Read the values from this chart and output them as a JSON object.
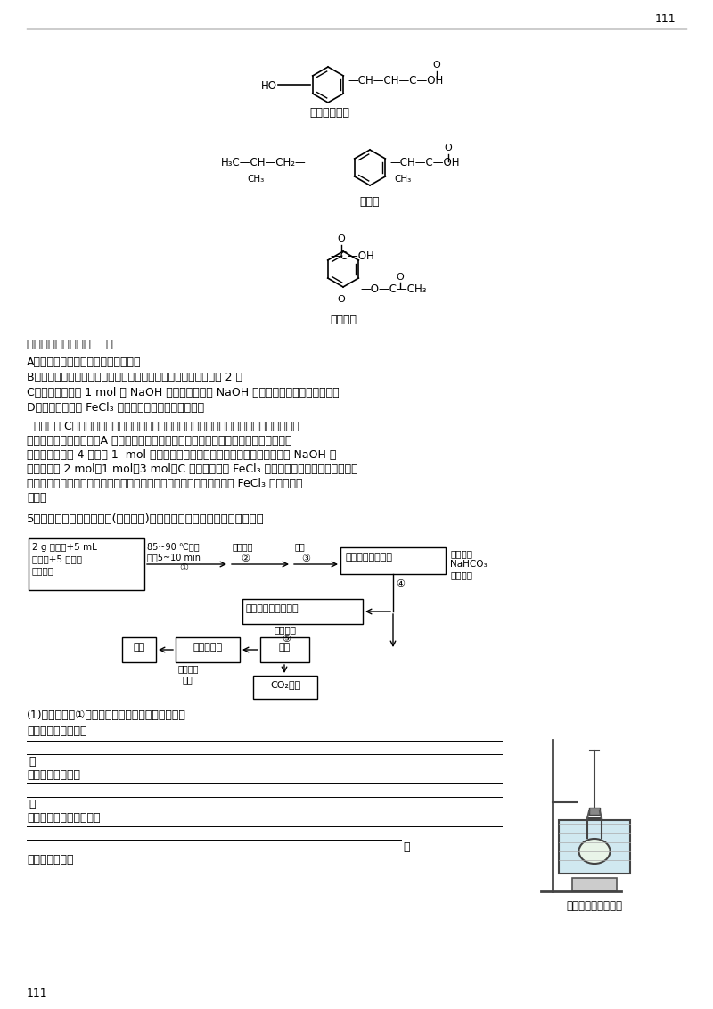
{
  "page_number": "111",
  "bg_color": "#ffffff",
  "text_color": "#000000",
  "molecule1_name": "对羟基桂皮酸",
  "molecule2_name": "布洛芬",
  "molecule3_name": "阿司匹林",
  "question_header": "以下说法正确的是（    ）",
  "options": [
    "A．三种有机物都能与浓溴水发生反应",
    "B．三种有机物苯环上的氢原子若被氯原子取代，其一氯化物只有 2 种",
    "C．三种有机物各 1 mol 与 NaOH 溶液反应，消耗 NaOH 的物质的量最多的是阿司匹林",
    "D．仅用稀硫酸和 FeCl₃ 溶液不能将三种有机物鉴别开"
  ],
  "analysis_lines": [
    "  解析：选 C。对羟基桂皮酸中有酚羟基，且有碳碳双键，能与浓溴水反应，布洛芬、阿司",
    "匹林不能与浓溴水反应，A 错。前两者苯环上的一氯代物都有两种，而后者无对称结构，",
    "故其一氯代物有 4 种。各 1  mol 的对羟基桂皮酸、布洛芬、阿司匹林分别消耗的 NaOH 的",
    "物质的量为 2 mol、1 mol、3 mol。C 项正确。先用 FeCl₃ 溶液可鉴别出对羟基桂皮酸，然",
    "后在余下的物质中分别加入稀硫酸加热，阿司匹林可水解生成酚，再用 FeCl₃ 溶液可进行",
    "鉴别。"
  ],
  "question5_intro": "5．以下是合成乙酰水杨酸(阿司匹林)的实验流程图，请你回答有关问题：",
  "q1_text": "(1)流程中的第①步的实验装置如图所示，请回答：",
  "q1a_label": "用水溶加热的作用是",
  "q1b_label": "长直导管的作用是",
  "q1c_label": "实验中加浓硫酸的目的是",
  "q1d_label": "主反应方程式为",
  "apparatus_label": "乙酰水杨酸制备装置",
  "footer_number": "111"
}
